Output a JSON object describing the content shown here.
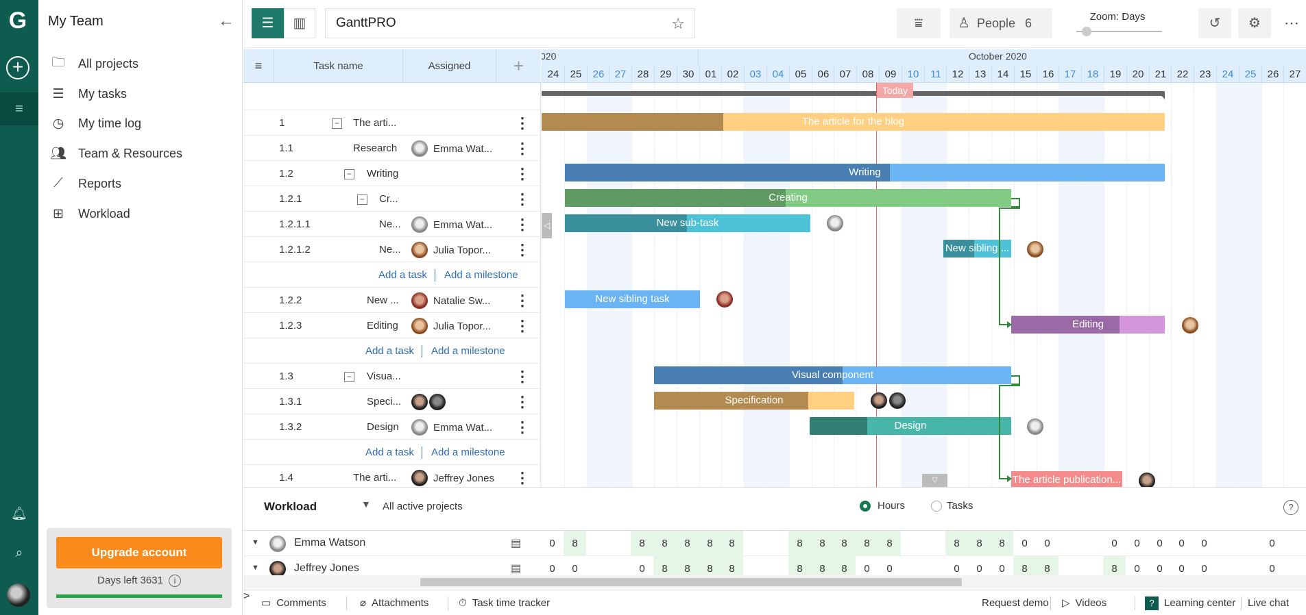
{
  "rail": {
    "logo": "G",
    "add": "+",
    "menu": "≡"
  },
  "sidebar": {
    "title": "My Team",
    "items": [
      {
        "label": "All projects",
        "icon": "folder-icon"
      },
      {
        "label": "My tasks",
        "icon": "list-icon"
      },
      {
        "label": "My time log",
        "icon": "clock-icon"
      },
      {
        "label": "Team & Resources",
        "icon": "people-icon"
      },
      {
        "label": "Reports",
        "icon": "chart-line-icon"
      },
      {
        "label": "Workload",
        "icon": "grid-icon"
      }
    ],
    "upgrade_label": "Upgrade account",
    "days_left": "Days left 3631",
    "trial_progress": 1.0
  },
  "toolbar": {
    "project_name": "GanttPRO",
    "people_label": "People",
    "people_count": "6",
    "zoom_label": "Zoom: Days"
  },
  "grid": {
    "col_task": "Task name",
    "col_assigned": "Assigned",
    "add_task": "Add a task",
    "add_milestone": "Add a milestone",
    "rows": [
      {
        "num": "1",
        "name": "The arti...",
        "assignee": "",
        "toggle": "−"
      },
      {
        "num": "1.1",
        "name": "Research",
        "assignee": "Emma Wat..."
      },
      {
        "num": "1.2",
        "name": "Writing",
        "assignee": "",
        "toggle": "−"
      },
      {
        "num": "1.2.1",
        "name": "Cr...",
        "assignee": "",
        "toggle": "−"
      },
      {
        "num": "1.2.1.1",
        "name": "Ne...",
        "assignee": "Emma Wat..."
      },
      {
        "num": "1.2.1.2",
        "name": "Ne...",
        "assignee": "Julia Topor..."
      },
      {
        "num": "1.2.2",
        "name": "New ...",
        "assignee": "Natalie Sw..."
      },
      {
        "num": "1.2.3",
        "name": "Editing",
        "assignee": "Julia Topor..."
      },
      {
        "num": "1.3",
        "name": "Visua...",
        "assignee": "",
        "toggle": "−"
      },
      {
        "num": "1.3.1",
        "name": "Speci...",
        "assignee": ""
      },
      {
        "num": "1.3.2",
        "name": "Design",
        "assignee": "Emma Wat..."
      },
      {
        "num": "1.4",
        "name": "The arti...",
        "assignee": "Jeffrey Jones"
      }
    ]
  },
  "timeline": {
    "month_prev": "020",
    "month_oct": "October 2020",
    "days": [
      "24",
      "25",
      "26",
      "27",
      "28",
      "29",
      "30",
      "01",
      "02",
      "03",
      "04",
      "05",
      "06",
      "07",
      "08",
      "09",
      "10",
      "11",
      "12",
      "13",
      "14",
      "15",
      "16",
      "17",
      "18",
      "19",
      "20",
      "21",
      "22",
      "23",
      "24",
      "25",
      "26",
      "27"
    ],
    "today": "Today",
    "bars": {
      "project": "The article for the blog",
      "writing": "Writing",
      "creating": "Creating",
      "new_subtask": "New sub-task",
      "new_sibling_a": "New sibling ...",
      "new_sibling_task": "New sibling task",
      "editing": "Editing",
      "visual": "Visual component",
      "specification": "Specification",
      "design": "Design",
      "publication": "The article publication..."
    }
  },
  "workload": {
    "title": "Workload",
    "filter": "All active projects",
    "opt_hours": "Hours",
    "opt_tasks": "Tasks",
    "people": [
      {
        "name": "Emma Watson",
        "values": [
          "0",
          "8",
          "",
          "",
          "8",
          "8",
          "8",
          "8",
          "8",
          "",
          "",
          "8",
          "8",
          "8",
          "8",
          "8",
          "",
          "",
          "8",
          "8",
          "8",
          "0",
          "0",
          "",
          "",
          "0",
          "0",
          "0",
          "0",
          "0",
          "",
          "",
          "0",
          ""
        ]
      },
      {
        "name": "Jeffrey Jones",
        "values": [
          "0",
          "0",
          "",
          "",
          "0",
          "8",
          "8",
          "8",
          "8",
          "",
          "",
          "8",
          "8",
          "8",
          "0",
          "0",
          "",
          "",
          "0",
          "0",
          "0",
          "8",
          "8",
          "",
          "",
          "8",
          "0",
          "0",
          "0",
          "0",
          "",
          "",
          "0",
          ""
        ]
      }
    ]
  },
  "footer": {
    "comments": "Comments",
    "attachments": "Attachments",
    "tracker": "Task time tracker",
    "demo": "Request demo",
    "videos": "Videos",
    "learning": "Learning center",
    "chat": "Live chat"
  }
}
